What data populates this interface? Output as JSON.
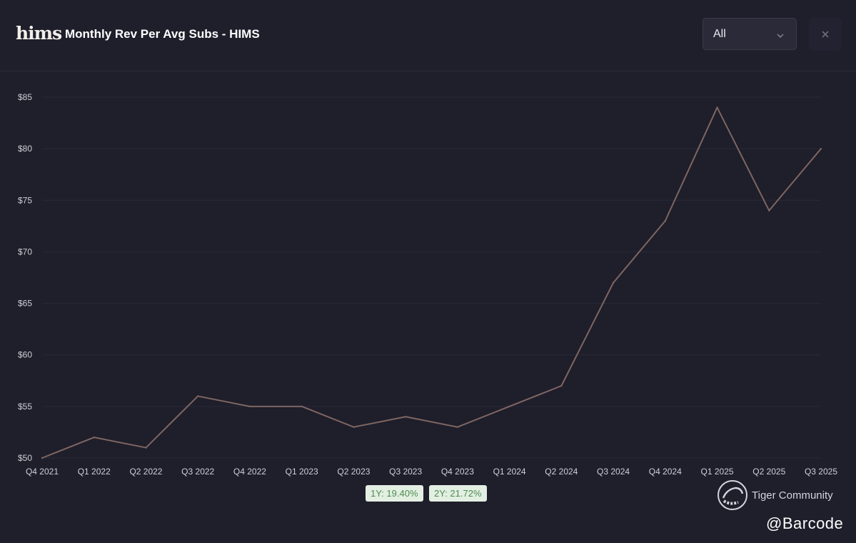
{
  "header": {
    "logo_text": "hims",
    "title": "Monthly Rev Per Avg Subs - HIMS",
    "filter_value": "All",
    "close_glyph": "×"
  },
  "chart_data": {
    "type": "line",
    "title": "Monthly Rev Per Avg Subs - HIMS",
    "categories": [
      "Q4 2021",
      "Q1 2022",
      "Q2 2022",
      "Q3 2022",
      "Q4 2022",
      "Q1 2023",
      "Q2 2023",
      "Q3 2023",
      "Q4 2023",
      "Q1 2024",
      "Q2 2024",
      "Q3 2024",
      "Q4 2024",
      "Q1 2025",
      "Q2 2025",
      "Q3 2025"
    ],
    "series": [
      {
        "values": [
          50,
          52,
          51,
          56,
          55,
          55,
          53,
          54,
          53,
          55,
          57,
          67,
          73,
          84,
          74,
          80
        ],
        "color": "#7d6662"
      }
    ],
    "ylim": [
      50,
      85
    ],
    "yticks": [
      "$50",
      "$55",
      "$60",
      "$65",
      "$70",
      "$75",
      "$80",
      "$85"
    ],
    "grid": true,
    "legend": "none"
  },
  "badges": [
    {
      "label": "1Y: 19.40%"
    },
    {
      "label": "2Y: 21.72%"
    }
  ],
  "watermark": {
    "brand": "Tiger Community",
    "handle": "@Barcode"
  },
  "colors": {
    "background": "#1f1e2b",
    "line": "#7d6662",
    "grid": "#2a2937",
    "badge_bg": "#e3efe3",
    "badge_text": "#4f8c4f"
  }
}
